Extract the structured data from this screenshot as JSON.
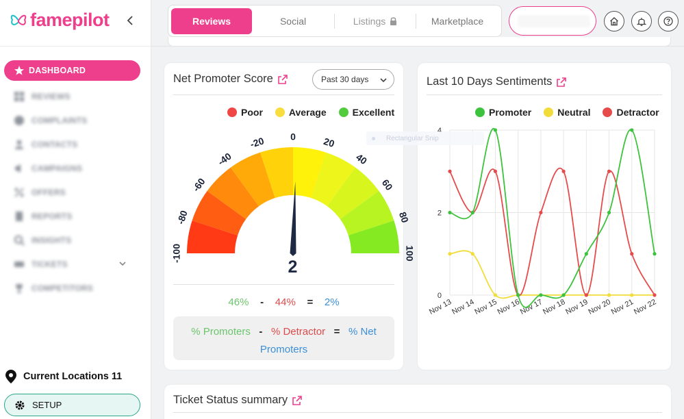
{
  "brand": {
    "name": "famepilot",
    "color": "#ee3f8d"
  },
  "sidebar": {
    "items": [
      {
        "label": "DASHBOARD",
        "icon": "star-icon",
        "active": true
      },
      {
        "label": "REVIEWS",
        "icon": "grid-icon"
      },
      {
        "label": "COMPLAINTS",
        "icon": "globe-icon"
      },
      {
        "label": "CONTACTS",
        "icon": "user-icon"
      },
      {
        "label": "CAMPAIGNS",
        "icon": "megaphone-icon"
      },
      {
        "label": "OFFERS",
        "icon": "percent-icon"
      },
      {
        "label": "REPORTS",
        "icon": "document-icon"
      },
      {
        "label": "INSIGHTS",
        "icon": "magnifier-icon"
      },
      {
        "label": "TICKETS",
        "icon": "ticket-icon",
        "expandable": true
      },
      {
        "label": "COMPETITORS",
        "icon": "trophy-icon"
      }
    ],
    "locations_label": "Current Locations 11",
    "setup_label": "SETUP"
  },
  "header": {
    "tabs": [
      {
        "label": "Reviews",
        "active": true
      },
      {
        "label": "Social"
      },
      {
        "label": "Listings",
        "locked": true
      },
      {
        "label": "Marketplace"
      }
    ],
    "icons": [
      "home-icon",
      "bell-icon",
      "help-icon"
    ]
  },
  "nps": {
    "title": "Net Promoter Score",
    "period": "Past 30 days",
    "legend": [
      {
        "label": "Poor",
        "color": "#f04646"
      },
      {
        "label": "Average",
        "color": "#f7dd3e"
      },
      {
        "label": "Excellent",
        "color": "#52cc3c"
      }
    ],
    "gauge_ticks": [
      "-100",
      "-80",
      "-60",
      "-40",
      "-20",
      "0",
      "20",
      "40",
      "60",
      "80",
      "100"
    ],
    "gauge_range": [
      -100,
      100
    ],
    "score": "2",
    "promoters_pct": "46%",
    "detractor_pct": "44%",
    "net_pct": "2%",
    "minus": "-",
    "equals": "=",
    "formula_promoters": "% Promoters",
    "formula_detractor": "% Detractor",
    "formula_net": "% Net Promoters"
  },
  "sentiments": {
    "title": "Last 10 Days Sentiments",
    "tooltip_ghost": "Rectangular Snip"
  },
  "chart_data": {
    "type": "line",
    "title": "",
    "xlabel": "",
    "ylabel": "",
    "ylim": [
      0,
      4
    ],
    "yticks": [
      "0",
      "2",
      "4"
    ],
    "x": [
      "Nov 13",
      "Nov 14",
      "Nov 15",
      "Nov 16",
      "Nov 17",
      "Nov 18",
      "Nov 19",
      "Nov 20",
      "Nov 21",
      "Nov 22"
    ],
    "legend_placement": "top-right",
    "grid": true,
    "series": [
      {
        "name": "Promoter",
        "color": "#3cc23c",
        "values": [
          2,
          2,
          4,
          0,
          0,
          0,
          1,
          2,
          4,
          1
        ]
      },
      {
        "name": "Neutral",
        "color": "#f2dc3a",
        "values": [
          1,
          1,
          0,
          0,
          0,
          0,
          0,
          0,
          0,
          0
        ]
      },
      {
        "name": "Detractor",
        "color": "#e54b4b",
        "values": [
          3,
          2,
          3,
          0,
          2,
          3,
          0,
          3,
          1,
          0
        ]
      }
    ]
  },
  "ticket": {
    "title": "Ticket Status summary"
  }
}
